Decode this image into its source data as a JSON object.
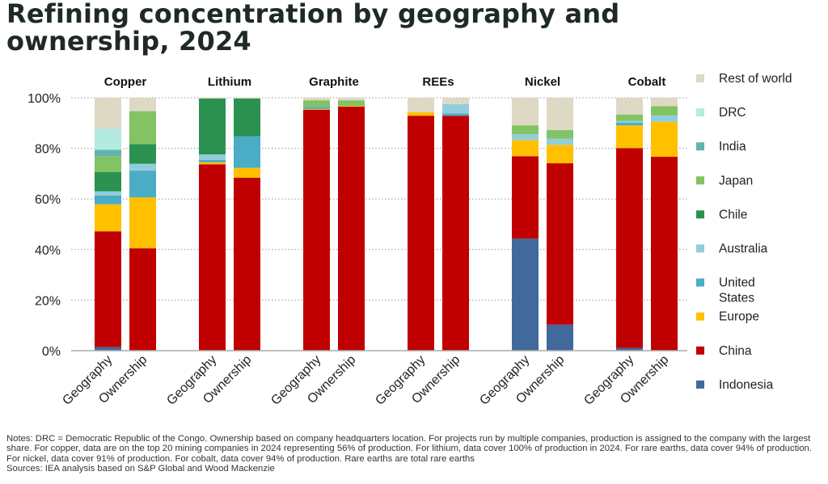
{
  "title": "Refining concentration by geography and ownership, 2024",
  "notes": "Notes: DRC = Democratic Republic of the Congo. Ownership based on company headquarters location. For projects run by multiple companies, production is assigned to the company with the largest share. For copper, data are on the top 20 mining companies in 2024 representing 56% of production. For lithium, data cover 100% of production in 2024. For rare earths, data cover 94% of production. For nickel, data cover 91% of production. For cobalt, data cover 94% of production. Rare earths are total rare earths",
  "sources": "Sources: IEA analysis based on S&P Global and Wood Mackenzie",
  "chart_data": {
    "type": "stacked-bar",
    "ylim": [
      0,
      100
    ],
    "yticks": [
      "0%",
      "20%",
      "40%",
      "60%",
      "80%",
      "100%"
    ],
    "grid": "horizontal dotted",
    "legend_placement": "right",
    "groups": [
      "Copper",
      "Lithium",
      "Graphite",
      "REEs",
      "Nickel",
      "Cobalt"
    ],
    "bar_labels": [
      "Geography",
      "Ownership"
    ],
    "series": [
      {
        "name": "Indonesia",
        "color": "#41699b",
        "values": [
          [
            1.4,
            0
          ],
          [
            0,
            0
          ],
          [
            0,
            0
          ],
          [
            0,
            0
          ],
          [
            44.3,
            10.3
          ],
          [
            1.1,
            0
          ]
        ]
      },
      {
        "name": "China",
        "color": "#c00000",
        "values": [
          [
            45.8,
            40.5
          ],
          [
            73.7,
            68.4
          ],
          [
            95.3,
            96.5
          ],
          [
            92.9,
            92.9
          ],
          [
            32.6,
            63.8
          ],
          [
            79.0,
            76.7
          ]
        ]
      },
      {
        "name": "Europe",
        "color": "#ffc000",
        "values": [
          [
            10.7,
            20.1
          ],
          [
            0.8,
            3.9
          ],
          [
            0.3,
            0.3
          ],
          [
            1.4,
            0
          ],
          [
            6.4,
            7.3
          ],
          [
            9.0,
            13.8
          ]
        ]
      },
      {
        "name": "United States",
        "color": "#4bacc6",
        "values": [
          [
            3.5,
            10.6
          ],
          [
            1.0,
            12.5
          ],
          [
            0.8,
            0
          ],
          [
            0,
            0.9
          ],
          [
            0,
            0
          ],
          [
            1.0,
            0
          ]
        ]
      },
      {
        "name": "Australia",
        "color": "#92cddc",
        "values": [
          [
            1.6,
            2.7
          ],
          [
            2.1,
            0
          ],
          [
            0,
            0
          ],
          [
            0,
            3.7
          ],
          [
            2.3,
            2.4
          ],
          [
            0.8,
            2.5
          ]
        ]
      },
      {
        "name": "Chile",
        "color": "#2a9150",
        "values": [
          [
            7.7,
            7.8
          ],
          [
            22.1,
            14.9
          ],
          [
            0,
            0
          ],
          [
            0,
            0
          ],
          [
            0,
            0
          ],
          [
            0,
            0
          ]
        ]
      },
      {
        "name": "Japan",
        "color": "#82c363",
        "values": [
          [
            6.2,
            13.0
          ],
          [
            0,
            0
          ],
          [
            2.6,
            2.2
          ],
          [
            0,
            0
          ],
          [
            3.5,
            3.4
          ],
          [
            2.5,
            3.7
          ]
        ]
      },
      {
        "name": "India",
        "color": "#5fb4ae",
        "values": [
          [
            2.5,
            0
          ],
          [
            0,
            0
          ],
          [
            0,
            0
          ],
          [
            0,
            0
          ],
          [
            0,
            0
          ],
          [
            0,
            0
          ]
        ]
      },
      {
        "name": "DRC",
        "color": "#b4ebe1",
        "values": [
          [
            8.3,
            0
          ],
          [
            0,
            0
          ],
          [
            0,
            0
          ],
          [
            0,
            0
          ],
          [
            0,
            0
          ],
          [
            0,
            0
          ]
        ]
      },
      {
        "name": "Rest of world",
        "color": "#ddd9c4",
        "values": [
          [
            12.3,
            5.3
          ],
          [
            0.3,
            0.3
          ],
          [
            1.0,
            1.0
          ],
          [
            5.7,
            2.5
          ],
          [
            10.9,
            12.8
          ],
          [
            6.6,
            3.3
          ]
        ]
      }
    ]
  }
}
